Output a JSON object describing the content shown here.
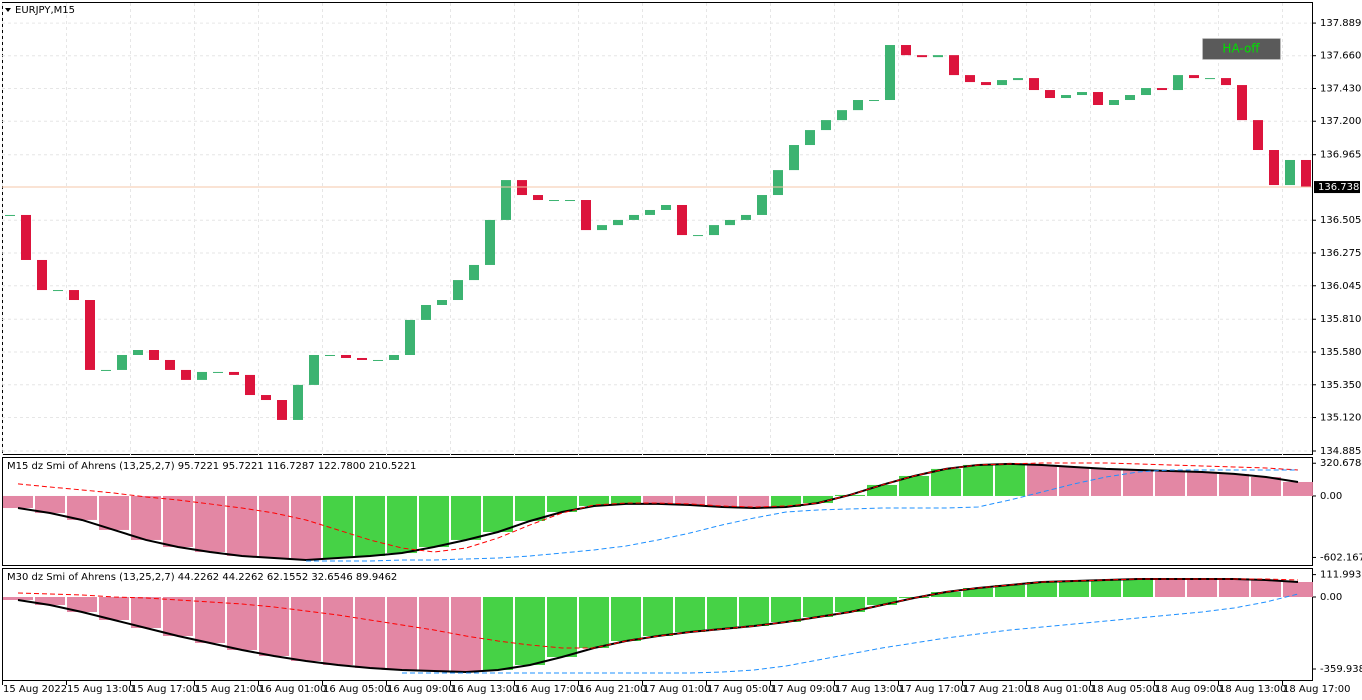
{
  "symbol": "EURJPY,M15",
  "button": "HA-off",
  "time_axis": [
    "15 Aug 2022",
    "15 Aug 13:00",
    "15 Aug 17:00",
    "15 Aug 21:00",
    "16 Aug 01:00",
    "16 Aug 05:00",
    "16 Aug 09:00",
    "16 Aug 13:00",
    "16 Aug 17:00",
    "16 Aug 21:00",
    "17 Aug 01:00",
    "17 Aug 05:00",
    "17 Aug 09:00",
    "17 Aug 13:00",
    "17 Aug 17:00",
    "17 Aug 21:00",
    "18 Aug 01:00",
    "18 Aug 05:00",
    "18 Aug 09:00",
    "18 Aug 13:00",
    "18 Aug 17:00"
  ],
  "chart_data": [
    {
      "type": "candlestick",
      "closes": [
        136.542,
        136.226,
        136.015,
        136.015,
        135.945,
        135.454,
        135.454,
        135.559,
        135.594,
        135.524,
        135.454,
        135.384,
        135.44,
        135.44,
        135.419,
        135.278,
        135.243,
        135.103,
        135.349,
        135.559,
        135.559,
        135.538,
        135.524,
        135.524,
        135.559,
        135.805,
        135.91,
        135.945,
        136.085,
        136.191,
        136.507,
        136.787,
        136.682,
        136.647,
        136.647,
        136.647,
        136.436,
        136.471,
        136.507,
        136.542,
        136.577,
        136.612,
        136.401,
        136.401,
        136.471,
        136.507,
        136.542,
        136.682,
        136.857,
        137.033,
        137.138,
        137.208,
        137.278,
        137.349,
        137.349,
        137.735,
        137.664,
        137.65,
        137.664,
        137.524,
        137.475,
        137.454,
        137.489,
        137.503,
        137.419,
        137.363,
        137.384,
        137.405,
        137.314,
        137.349,
        137.384,
        137.433,
        137.419,
        137.524,
        137.503,
        137.503,
        137.454,
        137.208,
        136.998,
        136.752,
        136.928,
        136.738
      ],
      "up_color": "#3cb371",
      "down_color": "#dc143c",
      "ylim": [
        134.857,
        138.03
      ],
      "yticks": [
        137.889,
        {
          "value": 137.66,
          "label": "137.660"
        },
        {
          "value": 137.43,
          "label": "137.430"
        },
        {
          "value": 137.2,
          "label": "137.200"
        },
        136.965,
        136.505,
        136.275,
        136.045,
        {
          "value": 135.81,
          "label": "135.810"
        },
        {
          "value": 135.58,
          "label": "135.580"
        },
        {
          "value": 135.35,
          "label": "135.350"
        },
        {
          "value": 135.12,
          "label": "135.120"
        },
        134.885
      ],
      "current_price": 136.738,
      "grid": true
    },
    {
      "type": "oscillator",
      "title": "M15 dz Smi of Ahrens (13,25,2,7) 95.7221 95.7221 116.7287 122.7800 210.5221",
      "ylim": [
        -686,
        372
      ],
      "yticks": [
        320.6784,
        {
          "value": 0,
          "label": "0.00"
        },
        -602.1672
      ],
      "series": [
        {
          "histogram": true,
          "color": "#000000",
          "up_color": "#32cd32",
          "down_color": "#e07a9a",
          "values": [
            -118,
            -167,
            -235,
            -333,
            -431,
            -500,
            -549,
            -588,
            -608,
            -627,
            -608,
            -588,
            -559,
            -500,
            -431,
            -353,
            -245,
            -157,
            -98,
            -78,
            -78,
            -88,
            -108,
            -118,
            -108,
            -69,
            10,
            108,
            196,
            265,
            304,
            314,
            304,
            284,
            265,
            255,
            245,
            235,
            216,
            186,
            137
          ]
        },
        {
          "dashed": true,
          "color": "#ff0000",
          "values": [
            118,
            88,
            59,
            29,
            -10,
            -39,
            -78,
            -118,
            -167,
            -235,
            -333,
            -431,
            -510,
            -549,
            -510,
            -412,
            -284,
            -167,
            -88,
            -69,
            -69,
            -78,
            -98,
            -108,
            -98,
            -69,
            10,
            108,
            196,
            265,
            304,
            314,
            323,
            323,
            323,
            314,
            304,
            294,
            284,
            274,
            255
          ]
        },
        {
          "dashed": true,
          "color": "#1e90ff",
          "values": [
            null,
            null,
            null,
            null,
            null,
            null,
            null,
            null,
            null,
            -637,
            -637,
            -637,
            -627,
            -627,
            -617,
            -608,
            -588,
            -559,
            -529,
            -490,
            -431,
            -363,
            -284,
            -216,
            -157,
            -137,
            -127,
            -118,
            -118,
            -118,
            -108,
            -39,
            39,
            118,
            186,
            235,
            255,
            255,
            255,
            255,
            255
          ]
        }
      ]
    },
    {
      "type": "oscillator",
      "title": "M30 dz Smi of Ahrens (13,25,2,7) 44.2262 44.2262 62.1552 32.6546 89.9462",
      "ylim": [
        -415,
        140
      ],
      "yticks": [
        111.9932,
        {
          "value": 0,
          "label": "0.00"
        },
        -359.938
      ],
      "series": [
        {
          "histogram": true,
          "color": "#000000",
          "up_color": "#32cd32",
          "down_color": "#e07a9a",
          "values": [
            -15,
            -40,
            -75,
            -115,
            -155,
            -195,
            -230,
            -265,
            -295,
            -320,
            -340,
            -355,
            -365,
            -370,
            -375,
            -365,
            -340,
            -300,
            -255,
            -220,
            -195,
            -175,
            -160,
            -145,
            -125,
            -100,
            -75,
            -40,
            -5,
            25,
            45,
            60,
            75,
            80,
            85,
            90,
            90,
            90,
            90,
            85,
            75
          ]
        },
        {
          "dashed": true,
          "color": "#ff0000",
          "values": [
            20,
            15,
            10,
            0,
            -5,
            -15,
            -25,
            -35,
            -50,
            -70,
            -90,
            -115,
            -140,
            -165,
            -195,
            -220,
            -240,
            -255,
            -255,
            -220,
            -195,
            -175,
            -160,
            -145,
            -125,
            -100,
            -75,
            -40,
            -5,
            25,
            45,
            60,
            75,
            80,
            85,
            90,
            90,
            90,
            90,
            90,
            85
          ]
        },
        {
          "dashed": true,
          "color": "#1e90ff",
          "values": [
            null,
            null,
            null,
            null,
            null,
            null,
            null,
            null,
            null,
            null,
            null,
            null,
            -380,
            -380,
            -380,
            -380,
            -380,
            -380,
            -380,
            -380,
            -380,
            -380,
            -375,
            -365,
            -345,
            -315,
            -285,
            -255,
            -230,
            -205,
            -185,
            -165,
            -150,
            -135,
            -120,
            -105,
            -90,
            -75,
            -55,
            -25,
            15
          ]
        }
      ]
    }
  ]
}
